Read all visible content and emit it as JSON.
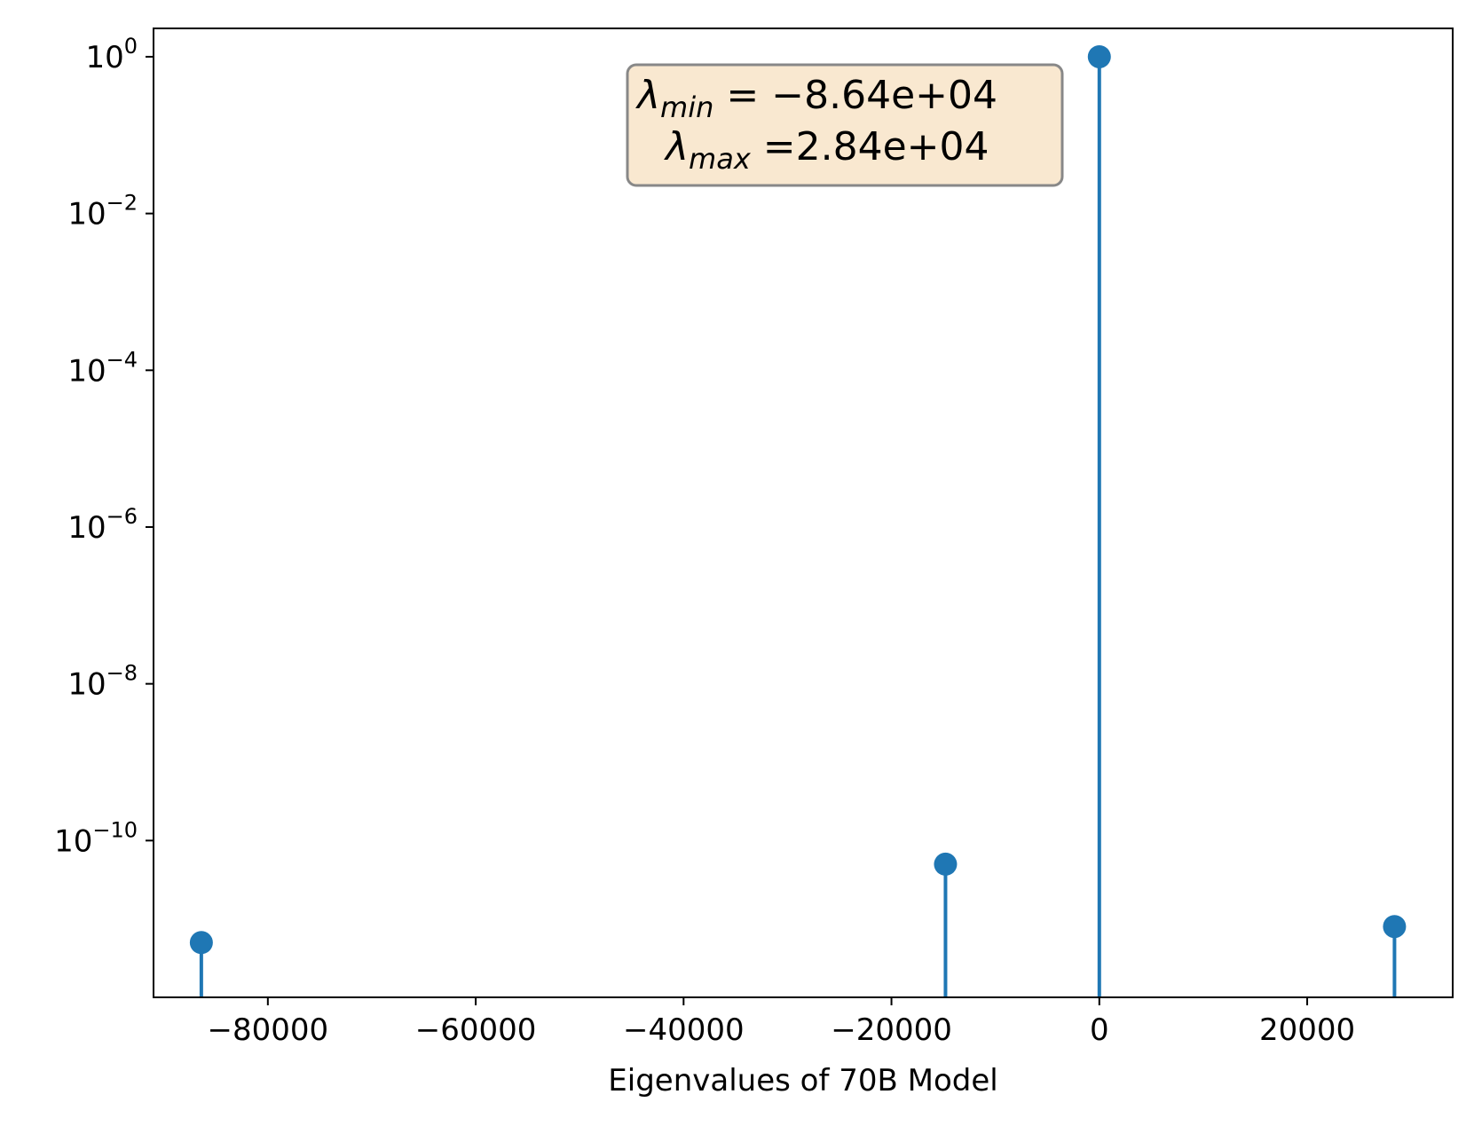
{
  "chart_data": {
    "type": "stem",
    "xlabel": "Eigenvalues of 70B Model",
    "ylabel": "",
    "yscale": "log",
    "xlim": [
      -91000,
      34000
    ],
    "ylim": [
      1e-12,
      2.3
    ],
    "x_ticks": [
      {
        "value": -80000,
        "label": "−80000"
      },
      {
        "value": -60000,
        "label": "−60000"
      },
      {
        "value": -40000,
        "label": "−40000"
      },
      {
        "value": -20000,
        "label": "−20000"
      },
      {
        "value": 0,
        "label": "0"
      },
      {
        "value": 20000,
        "label": "20000"
      }
    ],
    "y_ticks": [
      {
        "value": 1,
        "base": "10",
        "exp": "0"
      },
      {
        "value": 0.01,
        "base": "10",
        "exp": "−2"
      },
      {
        "value": 0.0001,
        "base": "10",
        "exp": "−4"
      },
      {
        "value": 1e-06,
        "base": "10",
        "exp": "−6"
      },
      {
        "value": 1e-08,
        "base": "10",
        "exp": "−8"
      },
      {
        "value": 1e-10,
        "base": "10",
        "exp": "−10"
      }
    ],
    "series": [
      {
        "color": "#1f77b4",
        "points": [
          {
            "x": -86400,
            "y": 5e-12
          },
          {
            "x": -14800,
            "y": 5e-11
          },
          {
            "x": 0,
            "y": 1
          },
          {
            "x": 28400,
            "y": 8e-12
          }
        ]
      }
    ],
    "annotation": {
      "line1": {
        "symbol": "λ",
        "sub": "min",
        "text": " = −8.64e+04"
      },
      "line2": {
        "symbol": "λ",
        "sub": "max",
        "text": " =2.84e+04"
      },
      "facecolor": "#f9e8d0",
      "edgecolor": "#888888"
    }
  }
}
